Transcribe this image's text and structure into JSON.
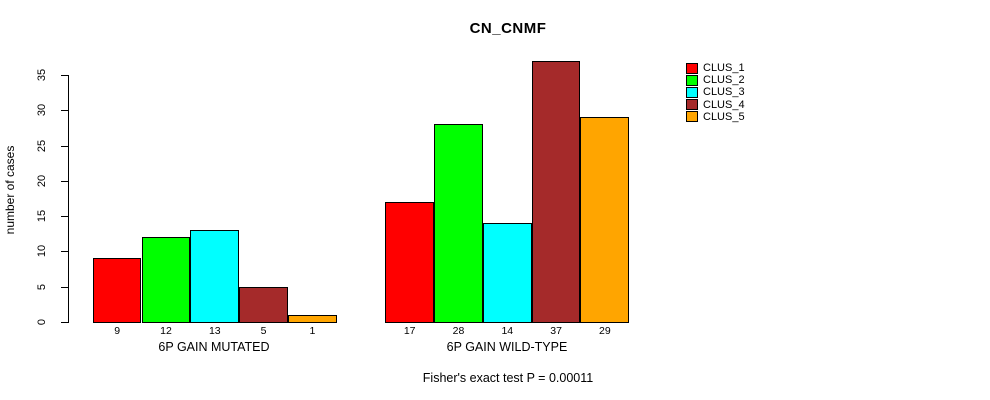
{
  "title": "CN_CNMF",
  "ylabel": "number of cases",
  "caption": "Fisher's exact test P = 0.00011",
  "legend": {
    "items": [
      {
        "label": "CLUS_1",
        "color": "#FF0000"
      },
      {
        "label": "CLUS_2",
        "color": "#00FF00"
      },
      {
        "label": "CLUS_3",
        "color": "#00FFFF"
      },
      {
        "label": "CLUS_4",
        "color": "#A52A2A"
      },
      {
        "label": "CLUS_5",
        "color": "#FFA500"
      }
    ]
  },
  "chart_data": {
    "type": "bar",
    "title": "CN_CNMF",
    "xlabel": "",
    "ylabel": "number of cases",
    "annotation": "Fisher's exact test P = 0.00011",
    "series_names": [
      "CLUS_1",
      "CLUS_2",
      "CLUS_3",
      "CLUS_4",
      "CLUS_5"
    ],
    "colors": [
      "#FF0000",
      "#00FF00",
      "#00FFFF",
      "#A52A2A",
      "#FFA500"
    ],
    "groups": [
      {
        "label": "6P GAIN MUTATED",
        "values": [
          9,
          12,
          13,
          5,
          1
        ]
      },
      {
        "label": "6P GAIN WILD-TYPE",
        "values": [
          17,
          28,
          14,
          37,
          29
        ]
      }
    ],
    "yticks": [
      0,
      5,
      10,
      15,
      20,
      25,
      30,
      35
    ],
    "ylim": [
      0,
      37
    ],
    "grid": false,
    "bar_value_labels": true,
    "legend_position": "right-outside"
  }
}
